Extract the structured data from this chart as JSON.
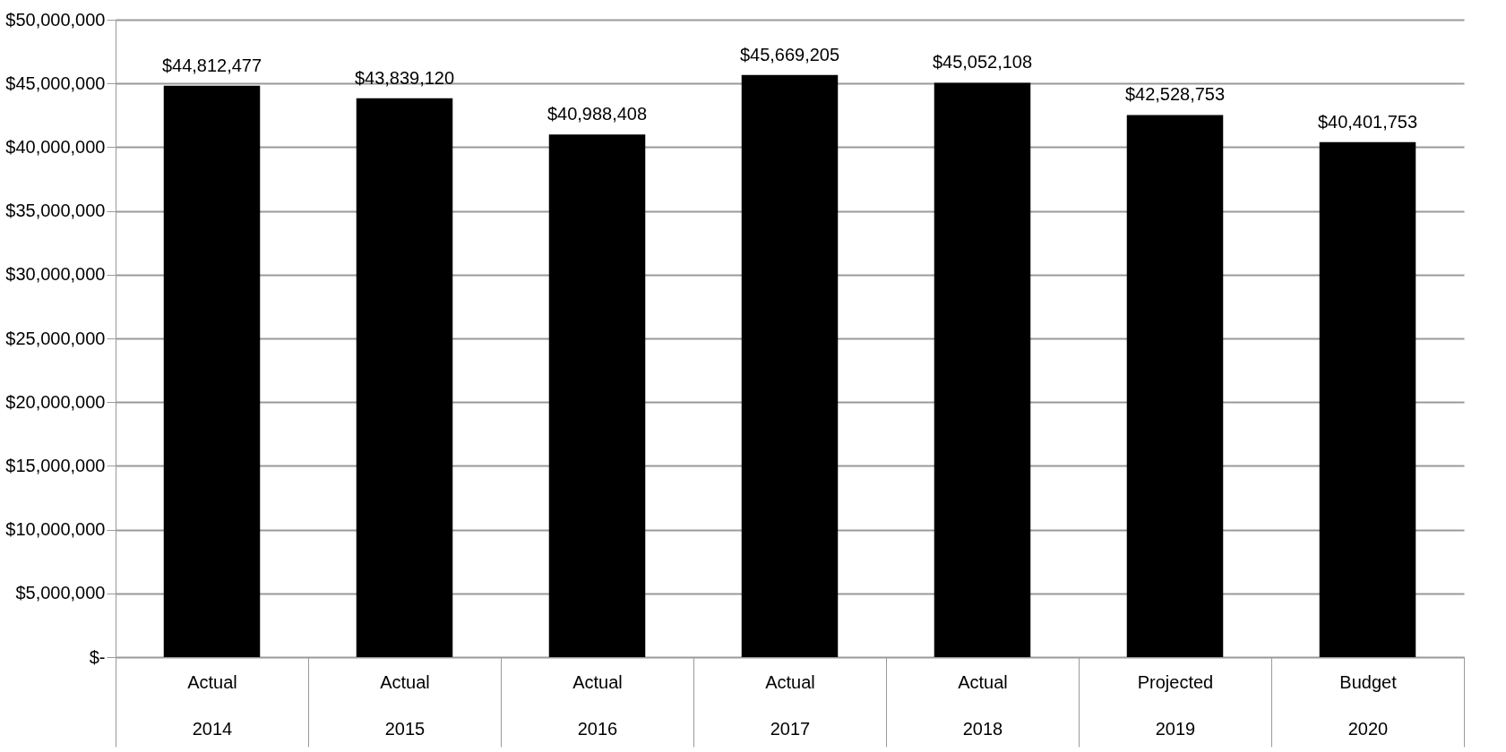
{
  "chart_data": {
    "type": "bar",
    "categories": [
      "Actual 2014",
      "Actual 2015",
      "Actual 2016",
      "Actual 2017",
      "Actual 2018",
      "Projected 2019",
      "Budget 2020"
    ],
    "values": [
      44812477,
      43839120,
      40988408,
      45669205,
      45052108,
      42528753,
      40401753
    ],
    "value_labels": [
      "$44,812,477",
      "$43,839,120",
      "$40,988,408",
      "$45,669,205",
      "$45,052,108",
      "$42,528,753",
      "$40,401,753"
    ],
    "color": "#000000",
    "ylim": [
      0,
      50000000
    ],
    "yticks": [
      {
        "value": 0,
        "label": "$-"
      },
      {
        "value": 5000000,
        "label": "$5,000,000"
      },
      {
        "value": 10000000,
        "label": "$10,000,000"
      },
      {
        "value": 15000000,
        "label": "$15,000,000"
      },
      {
        "value": 20000000,
        "label": "$20,000,000"
      },
      {
        "value": 25000000,
        "label": "$25,000,000"
      },
      {
        "value": 30000000,
        "label": "$30,000,000"
      },
      {
        "value": 35000000,
        "label": "$35,000,000"
      },
      {
        "value": 40000000,
        "label": "$40,000,000"
      },
      {
        "value": 45000000,
        "label": "$45,000,000"
      },
      {
        "value": 50000000,
        "label": "$50,000,000"
      }
    ],
    "grid": "y"
  }
}
